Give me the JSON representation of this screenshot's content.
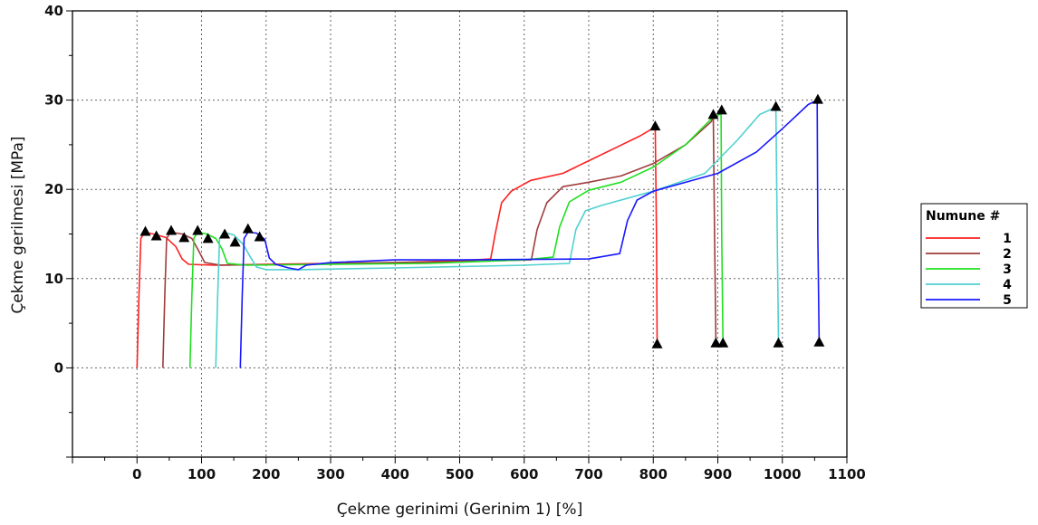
{
  "chart_data": {
    "type": "line",
    "title": "",
    "xlabel": "Çekme gerinimi (Gerinim 1) [%]",
    "ylabel": "Çekme gerilmesi [MPa]",
    "xlim": [
      -100,
      1100
    ],
    "ylim": [
      -10,
      40
    ],
    "xticks": [
      0,
      100,
      200,
      300,
      400,
      500,
      600,
      700,
      800,
      900,
      1000,
      1100
    ],
    "yticks": [
      0,
      10,
      20,
      30,
      40
    ],
    "grid": true,
    "legend": {
      "title": "Numune #",
      "position": "right"
    },
    "series": [
      {
        "name": "1",
        "color": "#ff2020",
        "points": [
          [
            0,
            0
          ],
          [
            3,
            8
          ],
          [
            6,
            14.5
          ],
          [
            12,
            15.2
          ],
          [
            25,
            15.0
          ],
          [
            45,
            14.6
          ],
          [
            60,
            13.6
          ],
          [
            70,
            12.2
          ],
          [
            80,
            11.6
          ],
          [
            120,
            11.5
          ],
          [
            200,
            11.6
          ],
          [
            300,
            11.7
          ],
          [
            400,
            11.8
          ],
          [
            500,
            12.0
          ],
          [
            548,
            12.2
          ],
          [
            555,
            15
          ],
          [
            565,
            18.5
          ],
          [
            580,
            19.8
          ],
          [
            610,
            21
          ],
          [
            660,
            21.8
          ],
          [
            700,
            23.2
          ],
          [
            740,
            24.6
          ],
          [
            780,
            26.0
          ],
          [
            803,
            27.0
          ],
          [
            805,
            15
          ],
          [
            806,
            2.8
          ]
        ],
        "markers": [
          [
            13,
            15.2
          ],
          [
            30,
            14.7
          ],
          [
            806,
            2.6
          ],
          [
            803,
            27.0
          ]
        ]
      },
      {
        "name": "2",
        "color": "#a03c3c",
        "points": [
          [
            40,
            0
          ],
          [
            43,
            8
          ],
          [
            46,
            14.5
          ],
          [
            52,
            15.2
          ],
          [
            70,
            15.0
          ],
          [
            85,
            14.5
          ],
          [
            95,
            13.2
          ],
          [
            105,
            11.8
          ],
          [
            130,
            11.5
          ],
          [
            250,
            11.6
          ],
          [
            400,
            11.8
          ],
          [
            500,
            11.9
          ],
          [
            611,
            12.1
          ],
          [
            620,
            15.5
          ],
          [
            635,
            18.5
          ],
          [
            660,
            20.3
          ],
          [
            700,
            20.8
          ],
          [
            750,
            21.5
          ],
          [
            800,
            22.9
          ],
          [
            850,
            25.0
          ],
          [
            890,
            27.6
          ],
          [
            893,
            28.3
          ],
          [
            895,
            15
          ],
          [
            897,
            2.8
          ]
        ],
        "markers": [
          [
            53,
            15.3
          ],
          [
            73,
            14.5
          ],
          [
            897,
            2.7
          ],
          [
            893,
            28.3
          ]
        ]
      },
      {
        "name": "3",
        "color": "#20e020",
        "points": [
          [
            82,
            0
          ],
          [
            85,
            8
          ],
          [
            88,
            14.5
          ],
          [
            94,
            15.2
          ],
          [
            108,
            15.0
          ],
          [
            122,
            14.5
          ],
          [
            132,
            13.3
          ],
          [
            140,
            11.7
          ],
          [
            170,
            11.5
          ],
          [
            300,
            11.6
          ],
          [
            450,
            11.7
          ],
          [
            600,
            12.1
          ],
          [
            645,
            12.4
          ],
          [
            655,
            15.8
          ],
          [
            670,
            18.6
          ],
          [
            700,
            19.9
          ],
          [
            750,
            20.8
          ],
          [
            800,
            22.5
          ],
          [
            850,
            25.0
          ],
          [
            890,
            27.9
          ],
          [
            905,
            28.5
          ],
          [
            906,
            15
          ],
          [
            908,
            2.8
          ]
        ],
        "markers": [
          [
            94,
            15.3
          ],
          [
            110,
            14.4
          ],
          [
            908,
            2.7
          ],
          [
            906,
            28.8
          ]
        ]
      },
      {
        "name": "4",
        "color": "#50d0d0",
        "points": [
          [
            122,
            0
          ],
          [
            125,
            8
          ],
          [
            128,
            14.5
          ],
          [
            134,
            15.2
          ],
          [
            150,
            14.9
          ],
          [
            165,
            13.8
          ],
          [
            175,
            12.5
          ],
          [
            185,
            11.3
          ],
          [
            200,
            11.0
          ],
          [
            250,
            11.0
          ],
          [
            400,
            11.2
          ],
          [
            600,
            11.5
          ],
          [
            670,
            11.7
          ],
          [
            680,
            15.5
          ],
          [
            695,
            17.6
          ],
          [
            720,
            18.2
          ],
          [
            800,
            19.8
          ],
          [
            880,
            21.8
          ],
          [
            930,
            25.5
          ],
          [
            965,
            28.4
          ],
          [
            990,
            29.2
          ],
          [
            992,
            15
          ],
          [
            994,
            2.8
          ]
        ],
        "markers": [
          [
            136,
            14.9
          ],
          [
            152,
            14.0
          ],
          [
            994,
            2.7
          ],
          [
            990,
            29.2
          ]
        ]
      },
      {
        "name": "5",
        "color": "#1818ff",
        "points": [
          [
            160,
            0
          ],
          [
            163,
            8
          ],
          [
            166,
            14.5
          ],
          [
            172,
            15.2
          ],
          [
            185,
            15.1
          ],
          [
            198,
            14.4
          ],
          [
            205,
            12.3
          ],
          [
            215,
            11.6
          ],
          [
            235,
            11.2
          ],
          [
            250,
            11.0
          ],
          [
            262,
            11.5
          ],
          [
            300,
            11.8
          ],
          [
            400,
            12.1
          ],
          [
            500,
            12.1
          ],
          [
            700,
            12.2
          ],
          [
            748,
            12.8
          ],
          [
            760,
            16.5
          ],
          [
            775,
            18.8
          ],
          [
            800,
            19.8
          ],
          [
            900,
            21.8
          ],
          [
            960,
            24.2
          ],
          [
            1000,
            26.8
          ],
          [
            1040,
            29.5
          ],
          [
            1054,
            30.0
          ],
          [
            1055,
            15
          ],
          [
            1057,
            2.8
          ]
        ],
        "markers": [
          [
            172,
            15.5
          ],
          [
            190,
            14.6
          ],
          [
            1057,
            2.8
          ],
          [
            1055,
            30.0
          ]
        ]
      }
    ]
  }
}
